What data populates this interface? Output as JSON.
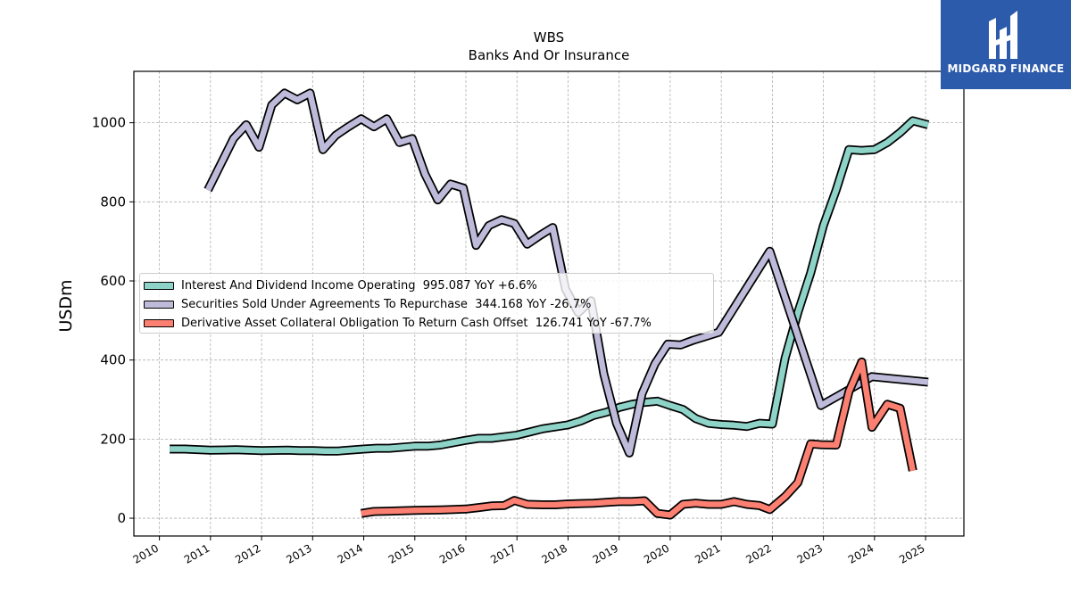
{
  "chart_data": {
    "type": "line",
    "title": "WBS",
    "subtitle": "Banks And Or Insurance",
    "xlabel": "",
    "ylabel": "USDm",
    "xlim": [
      2009.5,
      2025.75
    ],
    "ylim": [
      -45,
      1130
    ],
    "xticks": [
      "2010",
      "2011",
      "2012",
      "2013",
      "2014",
      "2015",
      "2016",
      "2017",
      "2018",
      "2019",
      "2020",
      "2021",
      "2022",
      "2023",
      "2024",
      "2025"
    ],
    "yticks": [
      "0",
      "200",
      "400",
      "600",
      "800",
      "1000"
    ],
    "grid": true,
    "legend_position": "center-left",
    "series": [
      {
        "name": "Interest And Dividend Income Operating",
        "legend": "Interest And Dividend Income Operating  995.087 YoY +6.6%",
        "color": "#8dd3c7",
        "points": [
          [
            2010.2,
            175
          ],
          [
            2010.5,
            175
          ],
          [
            2011.0,
            172
          ],
          [
            2011.5,
            173
          ],
          [
            2012.0,
            171
          ],
          [
            2012.5,
            172
          ],
          [
            2012.75,
            171
          ],
          [
            2013.0,
            171
          ],
          [
            2013.25,
            170
          ],
          [
            2013.5,
            170
          ],
          [
            2014.0,
            175
          ],
          [
            2014.25,
            177
          ],
          [
            2014.5,
            177
          ],
          [
            2015.0,
            182
          ],
          [
            2015.25,
            182
          ],
          [
            2015.5,
            185
          ],
          [
            2016.0,
            197
          ],
          [
            2016.25,
            202
          ],
          [
            2016.5,
            202
          ],
          [
            2017.0,
            210
          ],
          [
            2017.25,
            218
          ],
          [
            2017.5,
            226
          ],
          [
            2018.0,
            236
          ],
          [
            2018.25,
            246
          ],
          [
            2018.5,
            260
          ],
          [
            2018.75,
            268
          ],
          [
            2019.0,
            280
          ],
          [
            2019.25,
            288
          ],
          [
            2019.5,
            293
          ],
          [
            2019.75,
            296
          ],
          [
            2020.0,
            285
          ],
          [
            2020.25,
            275
          ],
          [
            2020.5,
            252
          ],
          [
            2020.75,
            240
          ],
          [
            2021.0,
            237
          ],
          [
            2021.25,
            235
          ],
          [
            2021.5,
            232
          ],
          [
            2021.75,
            240
          ],
          [
            2022.0,
            238
          ],
          [
            2022.25,
            405
          ],
          [
            2022.5,
            520
          ],
          [
            2022.75,
            620
          ],
          [
            2023.0,
            740
          ],
          [
            2023.25,
            830
          ],
          [
            2023.5,
            932
          ],
          [
            2023.75,
            930
          ],
          [
            2024.0,
            932
          ],
          [
            2024.25,
            950
          ],
          [
            2024.5,
            975
          ],
          [
            2024.75,
            1005
          ],
          [
            2025.05,
            995
          ]
        ]
      },
      {
        "name": "Securities Sold Under Agreements To Repurchase",
        "legend": "Securities Sold Under Agreements To Repurchase  344.168 YoY -26.7%",
        "color": "#bebada",
        "points": [
          [
            2010.95,
            830
          ],
          [
            2011.2,
            895
          ],
          [
            2011.45,
            960
          ],
          [
            2011.7,
            995
          ],
          [
            2011.95,
            938
          ],
          [
            2012.2,
            1045
          ],
          [
            2012.45,
            1075
          ],
          [
            2012.7,
            1058
          ],
          [
            2012.95,
            1075
          ],
          [
            2013.2,
            932
          ],
          [
            2013.45,
            968
          ],
          [
            2013.7,
            990
          ],
          [
            2013.95,
            1010
          ],
          [
            2014.2,
            990
          ],
          [
            2014.45,
            1010
          ],
          [
            2014.7,
            950
          ],
          [
            2014.95,
            960
          ],
          [
            2015.2,
            870
          ],
          [
            2015.45,
            805
          ],
          [
            2015.7,
            845
          ],
          [
            2015.95,
            835
          ],
          [
            2016.2,
            690
          ],
          [
            2016.45,
            740
          ],
          [
            2016.7,
            755
          ],
          [
            2016.95,
            745
          ],
          [
            2017.2,
            693
          ],
          [
            2017.45,
            715
          ],
          [
            2017.7,
            735
          ],
          [
            2017.95,
            580
          ],
          [
            2018.2,
            520
          ],
          [
            2018.45,
            550
          ],
          [
            2018.7,
            365
          ],
          [
            2018.95,
            240
          ],
          [
            2019.2,
            165
          ],
          [
            2019.45,
            315
          ],
          [
            2019.7,
            390
          ],
          [
            2019.95,
            440
          ],
          [
            2020.2,
            438
          ],
          [
            2020.45,
            450
          ],
          [
            2020.7,
            460
          ],
          [
            2020.95,
            470
          ],
          [
            2021.95,
            675
          ],
          [
            2022.95,
            285
          ],
          [
            2023.95,
            358
          ],
          [
            2025.05,
            344
          ]
        ]
      },
      {
        "name": "Derivative Asset Collateral Obligation To Return Cash Offset",
        "legend": "Derivative Asset Collateral Obligation To Return Cash Offset  126.741 YoY -67.7%",
        "color": "#fb8072",
        "points": [
          [
            2013.95,
            12
          ],
          [
            2014.2,
            17
          ],
          [
            2014.5,
            18
          ],
          [
            2015.0,
            20
          ],
          [
            2015.5,
            21
          ],
          [
            2016.0,
            23
          ],
          [
            2016.25,
            27
          ],
          [
            2016.5,
            31
          ],
          [
            2016.75,
            32
          ],
          [
            2016.95,
            45
          ],
          [
            2017.2,
            35
          ],
          [
            2017.5,
            34
          ],
          [
            2017.75,
            34
          ],
          [
            2018.0,
            36
          ],
          [
            2018.25,
            37
          ],
          [
            2018.5,
            38
          ],
          [
            2018.75,
            40
          ],
          [
            2019.0,
            42
          ],
          [
            2019.25,
            42
          ],
          [
            2019.5,
            44
          ],
          [
            2019.75,
            12
          ],
          [
            2020.0,
            8
          ],
          [
            2020.25,
            35
          ],
          [
            2020.5,
            38
          ],
          [
            2020.75,
            35
          ],
          [
            2021.0,
            35
          ],
          [
            2021.25,
            42
          ],
          [
            2021.5,
            35
          ],
          [
            2021.75,
            32
          ],
          [
            2021.95,
            22
          ],
          [
            2022.25,
            55
          ],
          [
            2022.5,
            90
          ],
          [
            2022.75,
            188
          ],
          [
            2022.95,
            186
          ],
          [
            2023.25,
            185
          ],
          [
            2023.5,
            320
          ],
          [
            2023.75,
            395
          ],
          [
            2023.95,
            230
          ],
          [
            2024.25,
            288
          ],
          [
            2024.5,
            278
          ],
          [
            2024.75,
            120
          ]
        ]
      }
    ]
  },
  "logo": {
    "text": "MIDGARD FINANCE",
    "color": "#2d5bab"
  }
}
